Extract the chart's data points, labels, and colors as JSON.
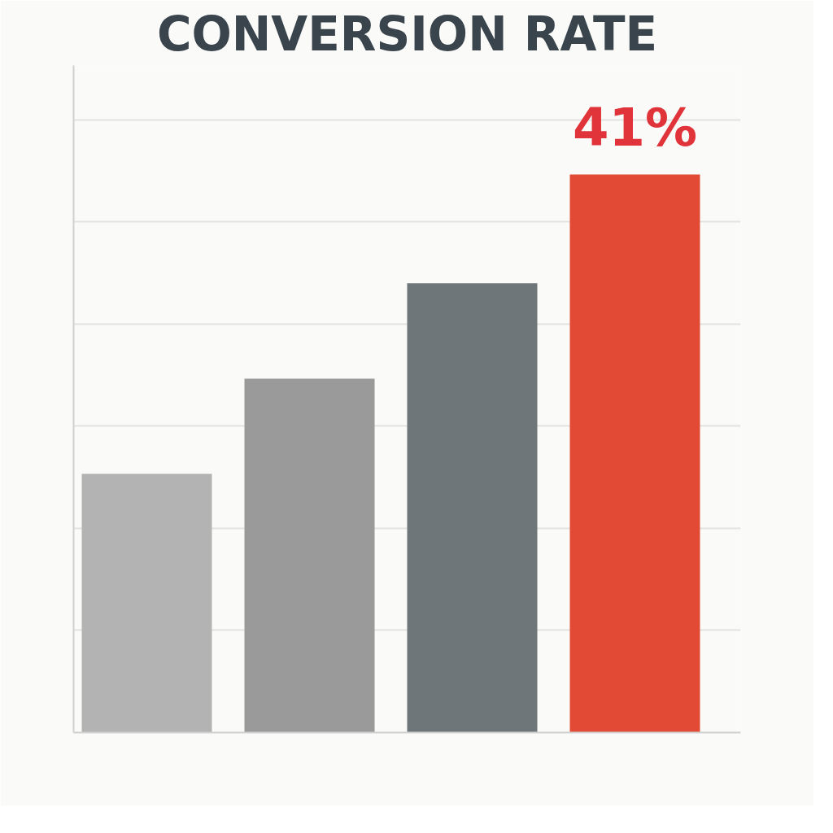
{
  "chart_data": {
    "type": "bar",
    "title": "CONVERSION RATE",
    "categories": [
      null,
      null,
      null,
      null
    ],
    "values": [
      19,
      26,
      33,
      41
    ],
    "colors": [
      "#b3b3b3",
      "#9a9a9a",
      "#6f7679",
      "#e34a35"
    ],
    "value_labels": [
      null,
      null,
      null,
      "41%"
    ],
    "ylim": [
      0,
      49
    ],
    "yticks": [
      {
        "value": 7.5,
        "label": null
      },
      {
        "value": 15,
        "label": null
      },
      {
        "value": 22.5,
        "label": null
      },
      {
        "value": 30,
        "label": null
      },
      {
        "value": 37.5,
        "label": null
      },
      {
        "value": 45,
        "label": null
      }
    ],
    "grid": "y"
  }
}
